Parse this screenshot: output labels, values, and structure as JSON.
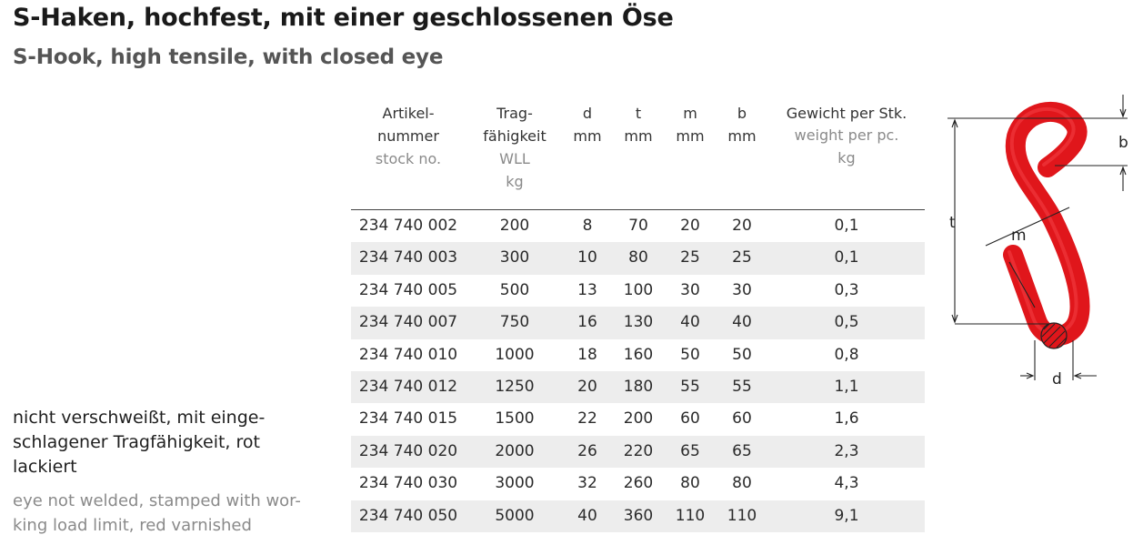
{
  "title_de": "S-Haken, hochfest, mit einer geschlossenen Öse",
  "title_en": "S-Hook, high tensile, with closed eye",
  "note_de": "nicht verschweißt, mit einge-schlagener Tragfähigkeit, rot lackiert",
  "note_de_lines": [
    "nicht verschweißt, mit einge-",
    "schlagener Tragfähigkeit, rot",
    "lackiert"
  ],
  "note_en_lines": [
    "eye not welded, stamped with wor-",
    "king load limit, red varnished"
  ],
  "table": {
    "headers": [
      {
        "de": [
          "Artikel-",
          "nummer"
        ],
        "en": [
          "stock no."
        ]
      },
      {
        "de": [
          "Trag-",
          "fähigkeit"
        ],
        "en": [
          "WLL",
          "kg"
        ]
      },
      {
        "de": [
          "d",
          "mm"
        ],
        "en": []
      },
      {
        "de": [
          "t",
          "mm"
        ],
        "en": []
      },
      {
        "de": [
          "m",
          "mm"
        ],
        "en": []
      },
      {
        "de": [
          "b",
          "mm"
        ],
        "en": []
      },
      {
        "de": [
          "Gewicht per Stk."
        ],
        "en": [
          "weight per pc.",
          "kg"
        ]
      }
    ],
    "rows": [
      [
        "234 740 002",
        "200",
        "8",
        "70",
        "20",
        "20",
        "0,1"
      ],
      [
        "234 740 003",
        "300",
        "10",
        "80",
        "25",
        "25",
        "0,1"
      ],
      [
        "234 740 005",
        "500",
        "13",
        "100",
        "30",
        "30",
        "0,3"
      ],
      [
        "234 740 007",
        "750",
        "16",
        "130",
        "40",
        "40",
        "0,5"
      ],
      [
        "234 740 010",
        "1000",
        "18",
        "160",
        "50",
        "50",
        "0,8"
      ],
      [
        "234 740 012",
        "1250",
        "20",
        "180",
        "55",
        "55",
        "1,1"
      ],
      [
        "234 740 015",
        "1500",
        "22",
        "200",
        "60",
        "60",
        "1,6"
      ],
      [
        "234 740 020",
        "2000",
        "26",
        "220",
        "65",
        "65",
        "2,3"
      ],
      [
        "234 740 030",
        "3000",
        "32",
        "260",
        "80",
        "80",
        "4,3"
      ],
      [
        "234 740 050",
        "5000",
        "40",
        "360",
        "110",
        "110",
        "9,1"
      ]
    ]
  },
  "drawing": {
    "hook_color": "#e0161b",
    "dim_labels": {
      "b": "b",
      "t": "t",
      "m": "m",
      "d": "d"
    }
  }
}
